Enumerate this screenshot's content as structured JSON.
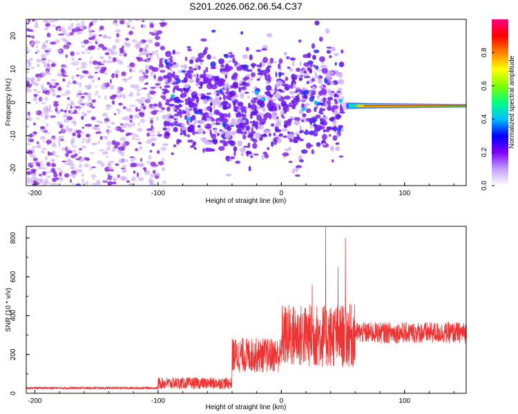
{
  "title": "S201.2026.062.06.54.C37",
  "chart_data": [
    {
      "type": "heatmap",
      "name": "spectrogram",
      "xlabel": "Height of straight line (km)",
      "ylabel": "Frequency (Hz)",
      "xlim": [
        -207,
        150
      ],
      "ylim": [
        -25,
        25
      ],
      "x_ticks": [
        -200,
        -100,
        0,
        100
      ],
      "y_ticks": [
        20,
        10,
        0,
        -10,
        -20
      ],
      "colorbar": {
        "label": "Normalized spectral amplitude",
        "range": [
          0.0,
          1.0
        ],
        "ticks": [
          0.0,
          0.2,
          0.4,
          0.6,
          0.8
        ],
        "tick_labels": [
          "0.0",
          "0.2",
          "0.4",
          "0.6",
          "0.8"
        ],
        "colors": [
          "#ffffff",
          "#c0a0ff",
          "#8000ff",
          "#0000ff",
          "#00c0ff",
          "#00ff80",
          "#80ff00",
          "#ffff00",
          "#ff8000",
          "#ff0000",
          "#ff0080"
        ]
      },
      "features": {
        "noise_region": [
          -207,
          -95
        ],
        "scatter_region": [
          -95,
          50
        ],
        "tone": {
          "x_start": 50,
          "x_end": 150,
          "frequency": -1,
          "peak_amplitude": 0.95
        }
      }
    },
    {
      "type": "line",
      "name": "snr",
      "xlabel": "Height of straight line (km)",
      "ylabel": "SNR (10 * v/v)",
      "xlim": [
        -207,
        150
      ],
      "ylim": [
        0,
        860
      ],
      "x_ticks": [
        -200,
        -100,
        0,
        100
      ],
      "y_ticks": [
        0,
        200,
        400,
        600,
        800
      ],
      "color": "#ee3333",
      "segments": [
        {
          "x_start": -207,
          "x_end": -100,
          "baseline": 25,
          "spread": 12
        },
        {
          "x_start": -100,
          "x_end": -40,
          "baseline": 40,
          "spread": 60
        },
        {
          "x_start": -40,
          "x_end": 0,
          "baseline": 160,
          "spread": 180
        },
        {
          "x_start": 0,
          "x_end": 60,
          "baseline": 230,
          "spread": 330
        },
        {
          "x_start": 60,
          "x_end": 150,
          "baseline": 290,
          "spread": 110
        }
      ],
      "peaks": [
        {
          "x": 36,
          "y": 855
        },
        {
          "x": 52,
          "y": 800
        },
        {
          "x": 46,
          "y": 650
        },
        {
          "x": 25,
          "y": 560
        }
      ]
    }
  ]
}
